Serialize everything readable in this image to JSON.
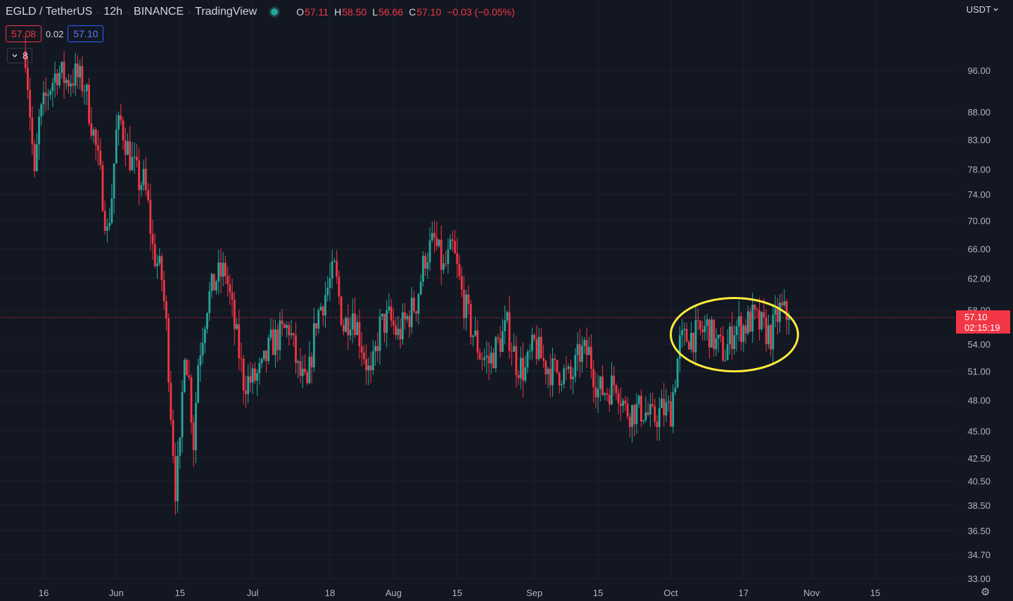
{
  "legend": {
    "symbol": "EGLD / TetherUS",
    "interval": "12h",
    "exchange": "BINANCE",
    "source": "TradingView",
    "open_key": "O",
    "open": "57.11",
    "high_key": "H",
    "high": "58.50",
    "low_key": "L",
    "low": "56.66",
    "close_key": "C",
    "close": "57.10",
    "change": "−0.03 (−0.05%)"
  },
  "quote": {
    "bid": "57.08",
    "spread": "0.02",
    "ask": "57.10"
  },
  "indicators_count": "8",
  "currency": "USDT",
  "last_price": {
    "price": "57.10",
    "countdown": "02:15:19"
  },
  "icons": {
    "status": "market-open-dot-icon",
    "collapse": "chevron-down-icon",
    "currency_menu": "chevron-down-icon",
    "settings": "gear-icon"
  },
  "colors": {
    "background": "#131722",
    "up": "#26a69a",
    "down": "#f23645",
    "grid": "#1e222d",
    "highlight": "#ffeb3b",
    "ask": "#2962ff"
  },
  "chart_data": {
    "type": "candlestick",
    "title": "EGLD / TetherUS · 12h · BINANCE",
    "y_scale": "log",
    "ylim": [
      33.0,
      106.0
    ],
    "y_ticks": [
      96.0,
      88.0,
      83.0,
      78.0,
      74.0,
      70.0,
      66.0,
      62.0,
      58.0,
      54.0,
      51.0,
      48.0,
      45.0,
      42.5,
      40.5,
      38.5,
      36.5,
      34.7,
      33.0
    ],
    "x_ticks": [
      {
        "label": "16",
        "date": "2022-05-16"
      },
      {
        "label": "Jun",
        "date": "2022-06-01"
      },
      {
        "label": "15",
        "date": "2022-06-15"
      },
      {
        "label": "Jul",
        "date": "2022-07-01"
      },
      {
        "label": "18",
        "date": "2022-07-18"
      },
      {
        "label": "Aug",
        "date": "2022-08-01"
      },
      {
        "label": "15",
        "date": "2022-08-15"
      },
      {
        "label": "Sep",
        "date": "2022-09-01"
      },
      {
        "label": "15",
        "date": "2022-09-15"
      },
      {
        "label": "Oct",
        "date": "2022-10-01"
      },
      {
        "label": "17",
        "date": "2022-10-17"
      },
      {
        "label": "Nov",
        "date": "2022-11-01"
      },
      {
        "label": "15",
        "date": "2022-11-15"
      }
    ],
    "last_close": 57.1,
    "close_series": {
      "points": [
        [
          "2022-05-12",
          100
        ],
        [
          "2022-05-14",
          76
        ],
        [
          "2022-05-15",
          86
        ],
        [
          "2022-05-17",
          92
        ],
        [
          "2022-05-19",
          96
        ],
        [
          "2022-05-21",
          94
        ],
        [
          "2022-05-23",
          95
        ],
        [
          "2022-05-25",
          93
        ],
        [
          "2022-05-27",
          84
        ],
        [
          "2022-05-29",
          74
        ],
        [
          "2022-05-30",
          68
        ],
        [
          "2022-05-31",
          74
        ],
        [
          "2022-06-01",
          84
        ],
        [
          "2022-06-02",
          86
        ],
        [
          "2022-06-04",
          80
        ],
        [
          "2022-06-06",
          76
        ],
        [
          "2022-06-07",
          76
        ],
        [
          "2022-06-08",
          72
        ],
        [
          "2022-06-09",
          66
        ],
        [
          "2022-06-11",
          62
        ],
        [
          "2022-06-12",
          56
        ],
        [
          "2022-06-13",
          47
        ],
        [
          "2022-06-14",
          40
        ],
        [
          "2022-06-15",
          43
        ],
        [
          "2022-06-16",
          54
        ],
        [
          "2022-06-17",
          50
        ],
        [
          "2022-06-18",
          44
        ],
        [
          "2022-06-19",
          52
        ],
        [
          "2022-06-21",
          59
        ],
        [
          "2022-06-23",
          62
        ],
        [
          "2022-06-25",
          63
        ],
        [
          "2022-06-27",
          56
        ],
        [
          "2022-06-29",
          50
        ],
        [
          "2022-07-01",
          50
        ],
        [
          "2022-07-03",
          51
        ],
        [
          "2022-07-05",
          54
        ],
        [
          "2022-07-07",
          55
        ],
        [
          "2022-07-09",
          56
        ],
        [
          "2022-07-11",
          51
        ],
        [
          "2022-07-13",
          49
        ],
        [
          "2022-07-15",
          57
        ],
        [
          "2022-07-17",
          60
        ],
        [
          "2022-07-19",
          63
        ],
        [
          "2022-07-21",
          56
        ],
        [
          "2022-07-23",
          58
        ],
        [
          "2022-07-25",
          54
        ],
        [
          "2022-07-27",
          50
        ],
        [
          "2022-07-29",
          56
        ],
        [
          "2022-07-31",
          57
        ],
        [
          "2022-08-02",
          55
        ],
        [
          "2022-08-04",
          57
        ],
        [
          "2022-08-06",
          59
        ],
        [
          "2022-08-08",
          65
        ],
        [
          "2022-08-10",
          67
        ],
        [
          "2022-08-12",
          63
        ],
        [
          "2022-08-14",
          66
        ],
        [
          "2022-08-16",
          60
        ],
        [
          "2022-08-18",
          56
        ],
        [
          "2022-08-20",
          53
        ],
        [
          "2022-08-22",
          52
        ],
        [
          "2022-08-24",
          54
        ],
        [
          "2022-08-26",
          56
        ],
        [
          "2022-08-28",
          52
        ],
        [
          "2022-08-30",
          51
        ],
        [
          "2022-09-01",
          54
        ],
        [
          "2022-09-03",
          52
        ],
        [
          "2022-09-05",
          51
        ],
        [
          "2022-09-07",
          51
        ],
        [
          "2022-09-09",
          50
        ],
        [
          "2022-09-11",
          53
        ],
        [
          "2022-09-13",
          53
        ],
        [
          "2022-09-15",
          49
        ],
        [
          "2022-09-17",
          49
        ],
        [
          "2022-09-19",
          50
        ],
        [
          "2022-09-21",
          47
        ],
        [
          "2022-09-23",
          47
        ],
        [
          "2022-09-25",
          47
        ],
        [
          "2022-09-27",
          46
        ],
        [
          "2022-09-29",
          47
        ],
        [
          "2022-10-01",
          47
        ],
        [
          "2022-10-03",
          54
        ],
        [
          "2022-10-05",
          55
        ],
        [
          "2022-10-07",
          55
        ],
        [
          "2022-10-09",
          56
        ],
        [
          "2022-10-11",
          54
        ],
        [
          "2022-10-13",
          53
        ],
        [
          "2022-10-15",
          56
        ],
        [
          "2022-10-17",
          56
        ],
        [
          "2022-10-19",
          57
        ],
        [
          "2022-10-21",
          56
        ],
        [
          "2022-10-23",
          55
        ],
        [
          "2022-10-25",
          58
        ],
        [
          "2022-10-27",
          57.1
        ]
      ]
    },
    "annotation": {
      "shape": "ellipse",
      "color": "#ffeb3b",
      "x_range": [
        "2022-10-01",
        "2022-10-29"
      ],
      "y_range": [
        51.0,
        59.5
      ]
    },
    "grid": true,
    "legend": "top-left"
  }
}
